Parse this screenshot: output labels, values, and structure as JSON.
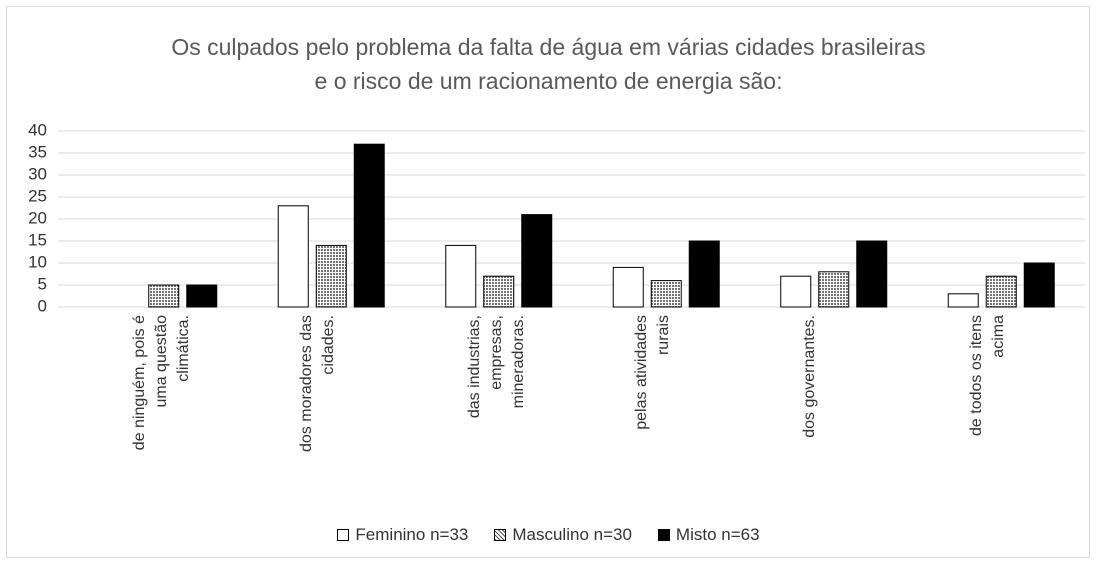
{
  "chart_data": {
    "type": "bar",
    "title": "Os culpados pelo problema da falta de água em várias cidades brasileiras e o risco de um racionamento de energia são:",
    "categories": [
      "de ninguém, pois é uma questão climática.",
      "dos moradores das cidades.",
      "das industrias, empresas, mineradoras.",
      "pelas atividades rurais",
      "dos governantes.",
      "de todos os itens acima"
    ],
    "series": [
      {
        "name": "Feminino n=33",
        "color": "#ffffff",
        "values": [
          0,
          23,
          14,
          9,
          7,
          3
        ]
      },
      {
        "name": "Masculino n=30",
        "color": "#8c8c8c",
        "values": [
          5,
          14,
          7,
          6,
          8,
          7
        ]
      },
      {
        "name": "Misto  n=63",
        "color": "#000000",
        "values": [
          5,
          37,
          21,
          15,
          15,
          10
        ]
      }
    ],
    "ylim": [
      0,
      40
    ],
    "yticks": [
      0,
      5,
      10,
      15,
      20,
      25,
      30,
      35,
      40
    ],
    "grid": true,
    "legend": "bottom"
  }
}
